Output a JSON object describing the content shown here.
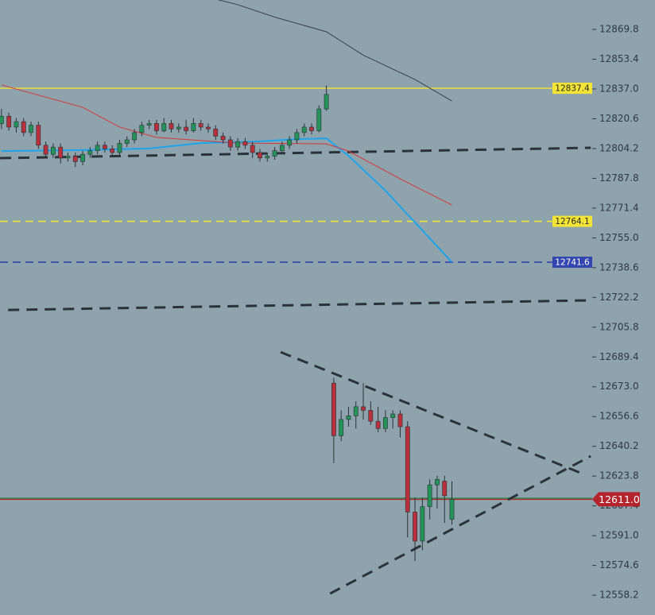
{
  "chart_data": {
    "type": "candlestick",
    "ylim": [
      12547.3,
      12886.0
    ],
    "xlim": [
      -0.2,
      80
    ],
    "yticks": [
      12869.8,
      12853.4,
      {
        "value": 12837,
        "label": "12837.0"
      },
      12820.6,
      12804.2,
      12787.8,
      12771.4,
      {
        "value": 12755,
        "label": "12755.0"
      },
      12738.6,
      12722.2,
      12705.8,
      12689.4,
      {
        "value": 12673,
        "label": "12673.0"
      },
      12656.6,
      12640.2,
      12623.8,
      12607.4,
      {
        "value": 12591,
        "label": "12591.0"
      },
      12574.6,
      12558.2
    ],
    "up_color": "#23935a",
    "down_color": "#b8303c",
    "wick_color": "#2b3138",
    "x": [
      0,
      1,
      2,
      3,
      4,
      5,
      6,
      7,
      8,
      9,
      10,
      11,
      12,
      13,
      14,
      15,
      16,
      17,
      18,
      19,
      20,
      21,
      22,
      23,
      24,
      25,
      26,
      27,
      28,
      29,
      30,
      31,
      32,
      33,
      34,
      35,
      36,
      37,
      38,
      39,
      40,
      41,
      42,
      43,
      44,
      45,
      46,
      47,
      48,
      49,
      50,
      51,
      52,
      53,
      54,
      55,
      56,
      57,
      58,
      59,
      60,
      61
    ],
    "open": [
      12818,
      12822,
      12816,
      12819,
      12813,
      12817,
      12806,
      12801,
      12805,
      12799,
      12800,
      12797,
      12801,
      12803,
      12806,
      12804,
      12802,
      12807,
      12809,
      12813,
      12817,
      12818,
      12814,
      12818,
      12815,
      12816,
      12814,
      12818,
      12816,
      12815,
      12811,
      12809,
      12805,
      12808,
      12806,
      12802,
      12799,
      12800,
      12803,
      12806,
      12809,
      12813,
      12816,
      12814,
      12826,
      12675,
      12646,
      12655,
      12657,
      12662,
      12660,
      12654,
      12650,
      12656,
      12658,
      12651,
      12604,
      12588,
      12607,
      12619,
      12621,
      12600
    ],
    "high": [
      12826,
      12824,
      12821,
      12821,
      12819,
      12819,
      12808,
      12807,
      12807,
      12802,
      12802,
      12803,
      12805,
      12808,
      12808,
      12806,
      12809,
      12811,
      12815,
      12819,
      12820,
      12820,
      12821,
      12820,
      12818,
      12820,
      12821,
      12820,
      12818,
      12817,
      12813,
      12811,
      12810,
      12810,
      12808,
      12804,
      12802,
      12805,
      12808,
      12811,
      12815,
      12818,
      12818,
      12828,
      12839,
      12678,
      12660,
      12662,
      12665,
      12675,
      12665,
      12662,
      12660,
      12660,
      12660,
      12654,
      12612,
      12612,
      12622,
      12624,
      12624,
      12621
    ],
    "low": [
      12815,
      12814,
      12813,
      12811,
      12811,
      12804,
      12799,
      12799,
      12796,
      12797,
      12794,
      12795,
      12799,
      12801,
      12802,
      12800,
      12800,
      12805,
      12807,
      12811,
      12815,
      12812,
      12813,
      12813,
      12813,
      12812,
      12813,
      12814,
      12813,
      12809,
      12807,
      12803,
      12803,
      12804,
      12799,
      12797,
      12797,
      12798,
      12801,
      12804,
      12807,
      12811,
      12812,
      12813,
      12825,
      12631,
      12643,
      12651,
      12650,
      12655,
      12652,
      12648,
      12648,
      12650,
      12645,
      12590,
      12577,
      12583,
      12600,
      12606,
      12598,
      12597
    ],
    "close": [
      12822,
      12816,
      12819,
      12813,
      12817,
      12806,
      12801,
      12805,
      12799,
      12800,
      12797,
      12801,
      12803,
      12806,
      12804,
      12802,
      12807,
      12809,
      12813,
      12817,
      12818,
      12814,
      12818,
      12815,
      12816,
      12814,
      12818,
      12816,
      12815,
      12811,
      12809,
      12805,
      12808,
      12806,
      12802,
      12799,
      12800,
      12803,
      12806,
      12809,
      12813,
      12816,
      12814,
      12826,
      12834,
      12646,
      12655,
      12657,
      12662,
      12660,
      12654,
      12650,
      12656,
      12658,
      12651,
      12604,
      12588,
      12607,
      12619,
      12622,
      12613,
      12611
    ],
    "lines": [
      {
        "color": "#1ea4ea",
        "width": 2,
        "x": [
          0,
          10,
          20,
          27,
          35,
          40,
          44,
          47,
          52,
          56,
          61
        ],
        "values": [
          12802.8,
          12803.3,
          12804.2,
          12807.2,
          12808.1,
          12809.4,
          12809.8,
          12800.2,
          12781.0,
          12763.5,
          12741.6
        ]
      },
      {
        "color": "#d23a3a",
        "width": 1,
        "x": [
          0,
          11,
          16,
          21,
          32,
          44,
          47,
          54,
          61
        ],
        "values": [
          12839.2,
          12826.9,
          12816.0,
          12810.3,
          12807.2,
          12806.8,
          12802.8,
          12787.5,
          12773.1
        ]
      },
      {
        "color": "#34424c",
        "width": 1,
        "x": [
          29,
          32,
          37,
          44,
          49,
          56,
          61
        ],
        "values": [
          12886.5,
          12883.4,
          12876.6,
          12868.5,
          12855.6,
          12842.2,
          12830.4
        ]
      }
    ],
    "trend_lines": [
      {
        "x": [
          -0.2,
          79.8
        ],
        "values": [
          12798.9,
          12804.6
        ]
      },
      {
        "x": [
          0.9,
          79.8
        ],
        "values": [
          12715.3,
          12720.6
        ]
      },
      {
        "x": [
          37.8,
          78.4
        ],
        "values": [
          12692.1,
          12625.6
        ]
      },
      {
        "x": [
          44.5,
          79.8
        ],
        "values": [
          12559.1,
          12634.8
        ]
      }
    ],
    "trend_color": "#2b333a",
    "levels": [
      {
        "value": 12837.4,
        "color": "#f3e437",
        "style": "solid",
        "label_bg": "#f3e437",
        "label_color": "#2a2a2a"
      },
      {
        "value": 12764.1,
        "color": "#f3e437",
        "style": "dashed",
        "label_bg": "#f3e437",
        "label_color": "#2a2a2a"
      },
      {
        "value": 12741.6,
        "color": "#3346b0",
        "style": "dashed",
        "label_bg": "#3346b0",
        "label_color": "#ffffff"
      },
      {
        "value": 12611.6,
        "color": "#1f8a4c",
        "style": "solid"
      },
      {
        "value": 12611,
        "label": "12611.0",
        "color": "#b3242c",
        "style": "solid",
        "label_bg": "#b3242c",
        "label_color": "#ffffff",
        "badge": "axis"
      }
    ]
  }
}
